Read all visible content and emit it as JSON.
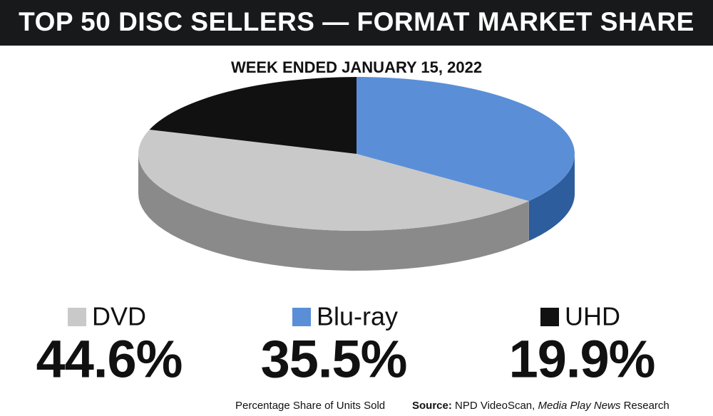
{
  "chart_data": {
    "type": "pie3d",
    "title": "TOP 50 DISC SELLERS — FORMAT MARKET SHARE",
    "subtitle": "WEEK ENDED JANUARY 15, 2022",
    "categories": [
      "DVD",
      "Blu-ray",
      "UHD"
    ],
    "values": [
      44.6,
      35.5,
      19.9
    ],
    "value_labels": [
      "44.6%",
      "35.5%",
      "19.9%"
    ],
    "colors": [
      "#c9c9c9",
      "#5a8fd8",
      "#111111"
    ],
    "side_colors": [
      "#8a8a8a",
      "#2d5d9c",
      "#050505"
    ],
    "note": "Percentage Share of Units Sold",
    "source_label": "Source:",
    "source": "NPD VideoScan,",
    "source_publication": "Media Play News",
    "source_suffix": "Research"
  }
}
